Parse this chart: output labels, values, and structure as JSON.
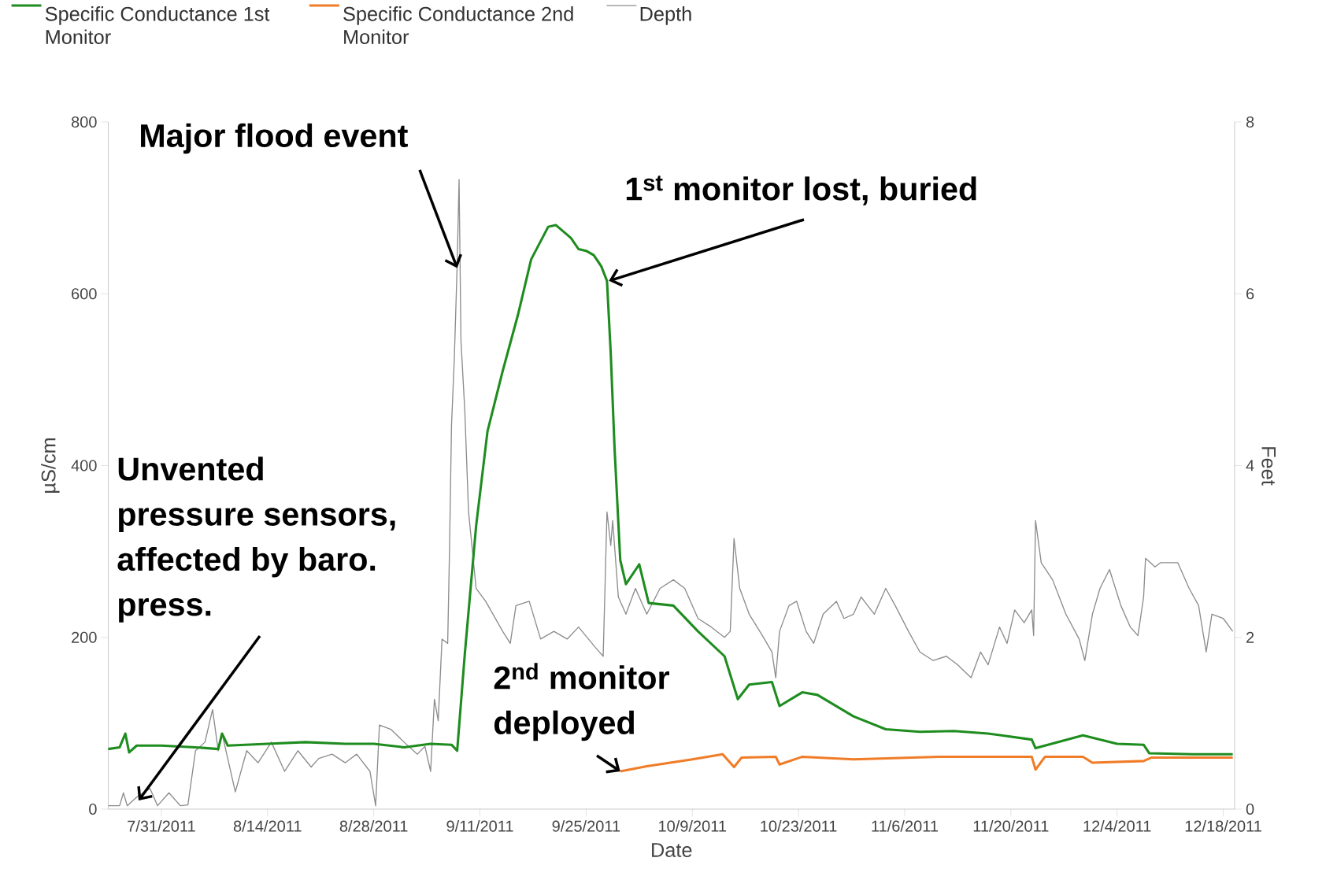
{
  "chart_data": {
    "type": "line",
    "xlabel": "Date",
    "ylabel": "µS/cm",
    "y2label": "Feet",
    "xlim": [
      "2011-07-24",
      "2011-12-19T12:00"
    ],
    "xticks": [
      {
        "value": "2011-07-31",
        "label": "7/31/2011"
      },
      {
        "value": "2011-08-14",
        "label": "8/14/2011"
      },
      {
        "value": "2011-08-28",
        "label": "8/28/2011"
      },
      {
        "value": "2011-09-11",
        "label": "9/11/2011"
      },
      {
        "value": "2011-09-25",
        "label": "9/25/2011"
      },
      {
        "value": "2011-10-09",
        "label": "10/9/2011"
      },
      {
        "value": "2011-10-23",
        "label": "10/23/2011"
      },
      {
        "value": "2011-11-06",
        "label": "11/6/2011"
      },
      {
        "value": "2011-11-20",
        "label": "11/20/2011"
      },
      {
        "value": "2011-12-04",
        "label": "12/4/2011"
      },
      {
        "value": "2011-12-18",
        "label": "12/18/2011"
      }
    ],
    "ylim": [
      0,
      800
    ],
    "yticks": [
      0,
      200,
      400,
      600,
      800
    ],
    "y2lim": [
      0,
      8
    ],
    "y2ticks": [
      0,
      2,
      4,
      6,
      8
    ],
    "legend": "top left",
    "series": [
      {
        "name": "Specific Conductance 1st Monitor",
        "color": "#1e8c1e",
        "x": [
          "2011-07-24",
          "2011-07-25T12:00",
          "2011-07-26T06:00",
          "2011-07-26T18:00",
          "2011-07-27T18:00",
          "2011-07-31",
          "2011-08-04T12:00",
          "2011-08-07T12:00",
          "2011-08-08",
          "2011-08-08T18:00",
          "2011-08-14",
          "2011-08-19",
          "2011-08-24T06:00",
          "2011-08-28",
          "2011-09-01",
          "2011-09-04T12:00",
          "2011-09-07T06:00",
          "2011-09-08",
          "2011-09-09",
          "2011-09-10T12:00",
          "2011-09-12",
          "2011-09-14",
          "2011-09-16",
          "2011-09-17T18:00",
          "2011-09-20",
          "2011-09-21",
          "2011-09-23",
          "2011-09-24",
          "2011-09-25",
          "2011-09-26",
          "2011-09-27",
          "2011-09-27T18:00",
          "2011-09-28T06:00",
          "2011-09-28T18:00",
          "2011-09-29T12:00",
          "2011-09-30T06:00",
          "2011-10-02",
          "2011-10-03T06:00",
          "2011-10-06T12:00",
          "2011-10-09T18:00",
          "2011-10-13T06:00",
          "2011-10-15",
          "2011-10-16T12:00",
          "2011-10-19T12:00",
          "2011-10-20T12:00",
          "2011-10-23T12:00",
          "2011-10-25T12:00",
          "2011-10-30T06:00",
          "2011-11-03T12:00",
          "2011-11-08",
          "2011-11-12T12:00",
          "2011-11-17",
          "2011-11-22T18:00",
          "2011-11-23T06:00",
          "2011-11-29T12:00",
          "2011-12-04",
          "2011-12-07T12:00",
          "2011-12-08T06:00",
          "2011-12-14",
          "2011-12-19T06:00"
        ],
        "values": [
          70,
          72,
          88,
          66,
          74,
          74,
          72,
          70,
          88,
          74,
          76,
          78,
          76,
          76,
          72,
          76,
          75,
          68,
          180,
          330,
          440,
          510,
          575,
          640,
          678,
          680,
          665,
          652,
          650,
          645,
          632,
          615,
          530,
          420,
          290,
          262,
          285,
          240,
          237,
          207,
          178,
          128,
          145,
          148,
          120,
          136,
          133,
          108,
          93,
          90,
          91,
          88,
          81,
          71,
          86,
          76,
          75,
          65,
          64,
          64
        ]
      },
      {
        "name": "Specific Conductance 2nd Monitor",
        "color": "#f07c28",
        "x": [
          "2011-09-29T12:00",
          "2011-10-03",
          "2011-10-09",
          "2011-10-13",
          "2011-10-14T12:00",
          "2011-10-15T12:00",
          "2011-10-20",
          "2011-10-20T12:00",
          "2011-10-23T12:00",
          "2011-10-30T06:00",
          "2011-11-10T12:00",
          "2011-11-22T18:00",
          "2011-11-23T06:00",
          "2011-11-24T12:00",
          "2011-11-29T12:00",
          "2011-11-30T18:00",
          "2011-12-07T12:00",
          "2011-12-08T12:00",
          "2011-12-19T06:00"
        ],
        "values": [
          44,
          50,
          58,
          64,
          49,
          60,
          61,
          52,
          61,
          58,
          61,
          61,
          46,
          61,
          61,
          54,
          56,
          60,
          60
        ]
      },
      {
        "name": "Depth",
        "color": "#8c8c8c",
        "axis": "y2",
        "x": [
          "2011-07-24",
          "2011-07-25T12:00",
          "2011-07-26",
          "2011-07-26T12:00",
          "2011-07-27T18:00",
          "2011-07-29T12:00",
          "2011-07-30T12:00",
          "2011-08-01",
          "2011-08-02T12:00",
          "2011-08-03T12:00",
          "2011-08-04T12:00",
          "2011-08-05T18:00",
          "2011-08-06T18:00",
          "2011-08-07T12:00",
          "2011-08-08",
          "2011-08-09T18:00",
          "2011-08-11T06:00",
          "2011-08-12T18:00",
          "2011-08-14T12:00",
          "2011-08-16T06:00",
          "2011-08-18",
          "2011-08-19T18:00",
          "2011-08-20T18:00",
          "2011-08-22T12:00",
          "2011-08-24T06:00",
          "2011-08-25T18:00",
          "2011-08-27T12:00",
          "2011-08-28T06:00",
          "2011-08-28T18:00",
          "2011-08-30T06:00",
          "2011-09-01",
          "2011-09-02T18:00",
          "2011-09-03T18:00",
          "2011-09-04T12:00",
          "2011-09-05",
          "2011-09-05T12:00",
          "2011-09-06",
          "2011-09-06T18:00",
          "2011-09-07",
          "2011-09-07T06:00",
          "2011-09-07T15:00",
          "2011-09-08",
          "2011-09-08T06:00",
          "2011-09-08T12:00",
          "2011-09-09",
          "2011-09-09T12:00",
          "2011-09-10T12:00",
          "2011-09-11T18:00",
          "2011-09-14",
          "2011-09-15",
          "2011-09-15T18:00",
          "2011-09-17T12:00",
          "2011-09-19",
          "2011-09-20T18:00",
          "2011-09-22T12:00",
          "2011-09-24",
          "2011-09-26T06:00",
          "2011-09-27T06:00",
          "2011-09-27T18:00",
          "2011-09-28T06:00",
          "2011-09-28T12:00",
          "2011-09-29T06:00",
          "2011-09-30T06:00",
          "2011-10-01T12:00",
          "2011-10-03",
          "2011-10-04T18:00",
          "2011-10-06T12:00",
          "2011-10-08",
          "2011-10-09T18:00",
          "2011-10-11T12:00",
          "2011-10-13T06:00",
          "2011-10-14",
          "2011-10-14T12:00",
          "2011-10-15T06:00",
          "2011-10-16T12:00",
          "2011-10-18T06:00",
          "2011-10-19T12:00",
          "2011-10-20",
          "2011-10-20T12:00",
          "2011-10-21T18:00",
          "2011-10-22T18:00",
          "2011-10-24",
          "2011-10-25",
          "2011-10-26T06:00",
          "2011-10-28",
          "2011-10-29",
          "2011-10-30T06:00",
          "2011-10-31T06:00",
          "2011-11-02",
          "2011-11-03T12:00",
          "2011-11-04T18:00",
          "2011-11-06T12:00",
          "2011-11-08",
          "2011-11-09T18:00",
          "2011-11-11T12:00",
          "2011-11-13",
          "2011-11-14T18:00",
          "2011-11-16",
          "2011-11-17",
          "2011-11-18T12:00",
          "2011-11-19T12:00",
          "2011-11-20T12:00",
          "2011-11-21T18:00",
          "2011-11-22T18:00",
          "2011-11-23",
          "2011-11-23T06:00",
          "2011-11-24",
          "2011-11-25T12:00",
          "2011-11-27T06:00",
          "2011-11-29",
          "2011-11-29T18:00",
          "2011-11-30T18:00",
          "2011-12-01T18:00",
          "2011-12-03",
          "2011-12-04T12:00",
          "2011-12-05T18:00",
          "2011-12-06T18:00",
          "2011-12-07T12:00",
          "2011-12-07T18:00",
          "2011-12-09",
          "2011-12-09T18:00",
          "2011-12-12",
          "2011-12-13T12:00",
          "2011-12-14T18:00",
          "2011-12-15T18:00",
          "2011-12-16T12:00",
          "2011-12-18",
          "2011-12-19T06:00"
        ],
        "values": [
          0.04,
          0.04,
          0.19,
          0.04,
          0.14,
          0.24,
          0.04,
          0.19,
          0.04,
          0.05,
          0.68,
          0.78,
          1.16,
          0.68,
          0.88,
          0.2,
          0.68,
          0.54,
          0.78,
          0.44,
          0.68,
          0.49,
          0.59,
          0.64,
          0.54,
          0.64,
          0.44,
          0.04,
          0.98,
          0.93,
          0.78,
          0.64,
          0.73,
          0.44,
          1.28,
          1.03,
          1.98,
          1.93,
          3.07,
          4.46,
          5.25,
          6.34,
          7.33,
          5.45,
          4.65,
          3.46,
          2.57,
          2.42,
          2.07,
          1.93,
          2.37,
          2.42,
          1.98,
          2.07,
          1.98,
          2.12,
          1.88,
          1.78,
          3.46,
          3.07,
          3.36,
          2.47,
          2.27,
          2.57,
          2.27,
          2.57,
          2.67,
          2.57,
          2.22,
          2.12,
          2.0,
          2.07,
          3.15,
          2.57,
          2.27,
          2.02,
          1.83,
          1.53,
          2.07,
          2.37,
          2.42,
          2.07,
          1.93,
          2.27,
          2.42,
          2.22,
          2.27,
          2.47,
          2.27,
          2.57,
          2.37,
          2.07,
          1.83,
          1.73,
          1.78,
          1.68,
          1.53,
          1.83,
          1.68,
          2.12,
          1.93,
          2.32,
          2.17,
          2.32,
          2.02,
          3.36,
          2.87,
          2.67,
          2.27,
          1.98,
          1.73,
          2.27,
          2.57,
          2.79,
          2.37,
          2.12,
          2.02,
          2.47,
          2.92,
          2.82,
          2.87,
          2.87,
          2.57,
          2.37,
          1.83,
          2.27,
          2.22,
          2.07
        ]
      }
    ],
    "annotations": [
      {
        "text": "Major flood event",
        "x": "2011-09-08",
        "y": 630
      },
      {
        "text": "1$^{st}$ monitor lost, buried",
        "x": "2011-09-28",
        "y": 615
      },
      {
        "text": "2$^{nd}$ monitor deployed",
        "x": "2011-09-29T12:00",
        "y": 44
      },
      {
        "text": "Unvented pressure sensors, affected by baro. press.",
        "x": "2011-07-28",
        "y": 10
      }
    ]
  }
}
